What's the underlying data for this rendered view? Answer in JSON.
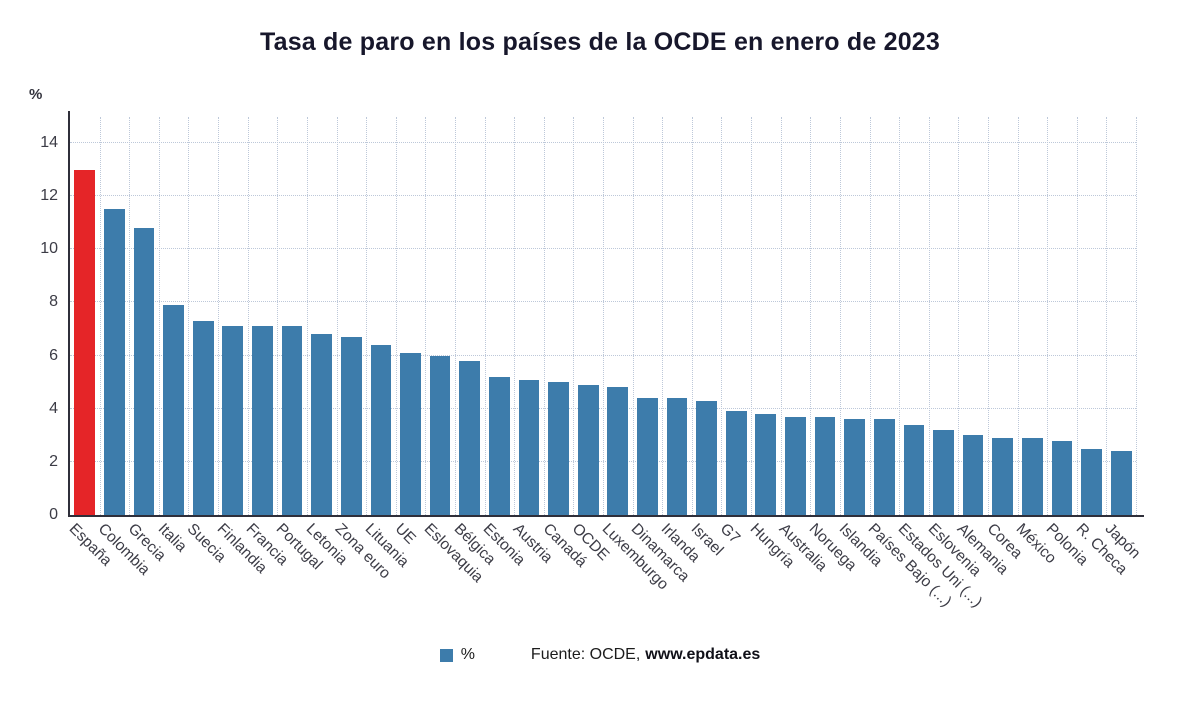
{
  "legend": {
    "swatch_label": "%",
    "source_prefix": "Fuente: OCDE,",
    "source_site": "www.epdata.es"
  },
  "colors": {
    "bar": "#3d7cab",
    "highlight": "#e52528",
    "grid": "#bdc8d9",
    "axis": "#2f2f3a"
  },
  "chart_data": {
    "type": "bar",
    "title": "Tasa de paro en los países de la OCDE en enero de 2023",
    "ylabel": "%",
    "ylim": [
      0,
      14
    ],
    "yticks": [
      0,
      2,
      4,
      6,
      8,
      10,
      12,
      14
    ],
    "grid": true,
    "legend_position": "bottom",
    "bar_color": "#3d7cab",
    "highlight_category": "España",
    "highlight_color": "#e52528",
    "categories": [
      "España",
      "Colombia",
      "Grecia",
      "Italia",
      "Suecia",
      "Finlandia",
      "Francia",
      "Portugal",
      "Letonia",
      "Zona euro",
      "Lituania",
      "UE",
      "Eslovaquia",
      "Bélgica",
      "Estonia",
      "Austria",
      "Canadá",
      "OCDE",
      "Luxemburgo",
      "Dinamarca",
      "Irlanda",
      "Israel",
      "G7",
      "Hungría",
      "Australia",
      "Noruega",
      "Islandia",
      "Países Bajo (...)",
      "Estados Uni (...)",
      "Eslovenia",
      "Alemania",
      "Corea",
      "México",
      "Polonia",
      "R. Checa",
      "Japón"
    ],
    "values": [
      13.0,
      11.5,
      10.8,
      7.9,
      7.3,
      7.1,
      7.1,
      7.1,
      6.8,
      6.7,
      6.4,
      6.1,
      6.0,
      5.8,
      5.2,
      5.1,
      5.0,
      4.9,
      4.8,
      4.4,
      4.4,
      4.3,
      3.9,
      3.8,
      3.7,
      3.7,
      3.6,
      3.6,
      3.4,
      3.2,
      3.0,
      2.9,
      2.9,
      2.8,
      2.5,
      2.4
    ]
  }
}
